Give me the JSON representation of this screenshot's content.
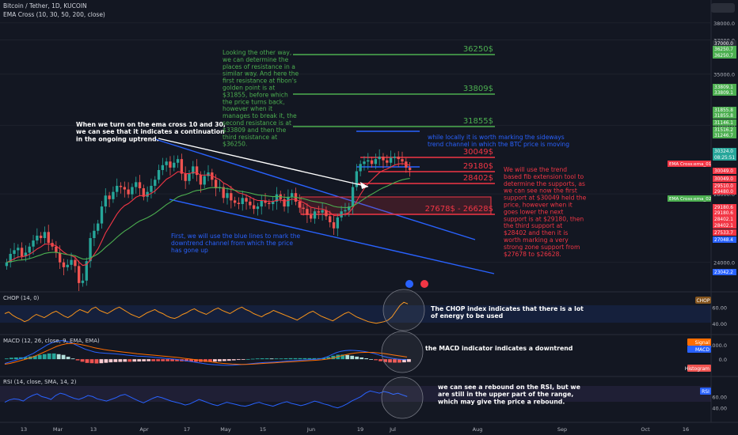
{
  "header": {
    "symbol_line": "Bitcoin / Tether, 1D, KUCOIN",
    "ema_line": "EMA Cross (10, 30, 50, 200, close)"
  },
  "colors": {
    "bg": "#131722",
    "up": "#26a69a",
    "down": "#ef5350",
    "blue_line": "#2962ff",
    "green_level": "#4caf50",
    "red_level": "#f23645",
    "ema_fast": "#f23645",
    "ema_slow": "#4caf50",
    "chop_line": "#f7931a",
    "macd_line": "#2962ff",
    "signal_line": "#ff6d00",
    "rsi_line": "#2962ff"
  },
  "chart_data": [
    {
      "type": "candlestick",
      "series_name": "BTC/USDT",
      "y_ticks": [
        24000,
        28000,
        32000,
        35000,
        37000,
        38000
      ],
      "ylim": [
        22500,
        38500
      ],
      "price_labels": [
        "37000.0",
        "36250.7",
        "36250.7",
        "33809.1",
        "33809.1",
        "31855.8",
        "31855.8",
        "31146.1",
        "31516.2",
        "31246.7",
        "30324.0",
        "08:25:51",
        "30049.0",
        "30049.0",
        "29510.0",
        "29480.0",
        "29180.6",
        "29180.6",
        "28402.1",
        "28402.1",
        "27533.7",
        "27048.4",
        "23042.2"
      ],
      "ema_tags": [
        "EMA Cross:ema_01",
        "EMA Cross:ema_02"
      ],
      "x_ticks": [
        "13",
        "Mar",
        "13",
        "Apr",
        "17",
        "May",
        "15",
        "Jun",
        "19",
        "Jul",
        "Aug",
        "Sep",
        "Oct",
        "16"
      ],
      "levels": [
        {
          "label": "36250$",
          "value": 36250,
          "color": "green"
        },
        {
          "label": "33809$",
          "value": 33809,
          "color": "green"
        },
        {
          "label": "31855$",
          "value": 31855,
          "color": "green"
        },
        {
          "label": "30049$",
          "value": 30049,
          "color": "red"
        },
        {
          "label": "29180$",
          "value": 29180,
          "color": "red"
        },
        {
          "label": "28402$",
          "value": 28402,
          "color": "red"
        },
        {
          "label": "27678$ - 26628$",
          "value": 27678,
          "color": "red"
        }
      ],
      "closes": [
        22100,
        22800,
        23100,
        23300,
        22600,
        22900,
        23400,
        23900,
        24300,
        24100,
        24600,
        23700,
        23400,
        22900,
        22100,
        21700,
        21900,
        22300,
        21800,
        20400,
        20600,
        22200,
        24100,
        24700,
        25300,
        26700,
        27600,
        27300,
        27900,
        28400,
        28300,
        28100,
        27700,
        28300,
        28700,
        28200,
        27500,
        27900,
        28400,
        28900,
        29700,
        30100,
        30400,
        29900,
        30300,
        30600,
        29400,
        28800,
        29400,
        30000,
        29300,
        28500,
        29200,
        29500,
        28900,
        28200,
        28300,
        27400,
        27800,
        27200,
        27000,
        26900,
        27400,
        27100,
        26800,
        26500,
        26700,
        27200,
        27000,
        26900,
        27100,
        27700,
        27300,
        26700,
        27500,
        27800,
        27100,
        26600,
        26500,
        26000,
        25700,
        26300,
        26200,
        26400,
        25900,
        25400,
        24900,
        25800,
        26300,
        26400,
        26700,
        28300,
        29600,
        30200,
        30400,
        30500,
        30200,
        30600,
        30800,
        30500,
        30300,
        30700,
        30800,
        30600,
        30400,
        29900,
        29700
      ]
    },
    {
      "type": "line",
      "series_name": "CHOP (14, 0)",
      "y_ticks": [
        40,
        60
      ],
      "badge": "CHOP",
      "values": [
        52,
        54,
        50,
        47,
        45,
        42,
        44,
        48,
        51,
        49,
        47,
        50,
        53,
        55,
        52,
        49,
        47,
        50,
        54,
        57,
        55,
        53,
        58,
        60,
        56,
        54,
        52,
        55,
        58,
        60,
        57,
        54,
        51,
        49,
        47,
        50,
        53,
        55,
        57,
        54,
        52,
        49,
        47,
        46,
        48,
        51,
        53,
        56,
        58,
        55,
        53,
        51,
        54,
        57,
        59,
        56,
        54,
        52,
        55,
        58,
        60,
        57,
        55,
        52,
        50,
        48,
        51,
        53,
        56,
        54,
        52,
        50,
        48,
        46,
        44,
        47,
        50,
        53,
        55,
        52,
        49,
        47,
        45,
        43,
        46,
        49,
        52,
        54,
        51,
        48,
        46,
        44,
        42,
        41,
        40,
        41,
        42,
        44,
        48,
        55,
        62,
        66,
        64
      ]
    },
    {
      "type": "histogram",
      "series_name": "MACD (12, 26, close, 9, EMA, EMA)",
      "y_ticks": [
        0,
        1000
      ],
      "ylim": [
        -600,
        1500
      ],
      "tags": [
        "Signal",
        "MACD",
        "Histogram"
      ],
      "macd": [
        -300,
        -200,
        -100,
        0,
        100,
        250,
        400,
        600,
        800,
        1000,
        1150,
        1250,
        1300,
        1250,
        1150,
        1000,
        850,
        700,
        600,
        500,
        450,
        420,
        400,
        380,
        350,
        320,
        280,
        250,
        220,
        200,
        180,
        150,
        120,
        90,
        60,
        30,
        0,
        -50,
        -100,
        -150,
        -200,
        -250,
        -300,
        -350,
        -380,
        -400,
        -420,
        -430,
        -420,
        -400,
        -380,
        -350,
        -320,
        -280,
        -250,
        -230,
        -220,
        -200,
        -180,
        -150,
        -120,
        -100,
        -80,
        -60,
        -40,
        -20,
        0,
        50,
        150,
        300,
        450,
        550,
        600,
        620,
        610,
        580,
        540,
        480,
        400,
        300,
        200,
        120,
        60,
        10,
        -20,
        -40
      ],
      "signal": [
        -350,
        -300,
        -220,
        -130,
        -40,
        60,
        170,
        300,
        450,
        600,
        750,
        900,
        1000,
        1080,
        1100,
        1080,
        1030,
        960,
        880,
        800,
        730,
        670,
        620,
        580,
        540,
        500,
        460,
        420,
        380,
        350,
        320,
        290,
        260,
        230,
        200,
        170,
        140,
        100,
        60,
        20,
        -20,
        -60,
        -110,
        -160,
        -210,
        -250,
        -290,
        -320,
        -340,
        -350,
        -360,
        -360,
        -350,
        -330,
        -310,
        -290,
        -270,
        -250,
        -230,
        -210,
        -190,
        -170,
        -150,
        -130,
        -110,
        -90,
        -70,
        -40,
        0,
        60,
        140,
        230,
        310,
        380,
        430,
        460,
        480,
        480,
        470,
        440,
        400,
        350,
        300,
        250,
        200,
        150
      ]
    },
    {
      "type": "line",
      "series_name": "RSI (14, close, SMA, 14, 2)",
      "y_ticks": [
        40,
        60
      ],
      "ylim": [
        20,
        90
      ],
      "badge": "RSI",
      "values": [
        50,
        54,
        56,
        55,
        52,
        58,
        62,
        65,
        60,
        58,
        55,
        62,
        66,
        64,
        60,
        57,
        55,
        58,
        62,
        60,
        56,
        54,
        52,
        55,
        58,
        62,
        64,
        60,
        56,
        52,
        49,
        53,
        57,
        60,
        58,
        55,
        52,
        50,
        48,
        45,
        47,
        51,
        55,
        52,
        49,
        46,
        44,
        47,
        50,
        48,
        46,
        44,
        43,
        45,
        48,
        50,
        47,
        45,
        43,
        46,
        49,
        51,
        48,
        46,
        44,
        46,
        49,
        52,
        50,
        47,
        45,
        42,
        40,
        43,
        47,
        52,
        56,
        60,
        66,
        70,
        68,
        66,
        69,
        67,
        64,
        66,
        63,
        60
      ]
    }
  ],
  "annotations": {
    "ema_cross": "When we turn on the ema cross 10 and 30,\nwe can see that it indicates a continuation\nin the ongoing uptrend.",
    "fib_resistance": "Looking the other way,\nwe can determine the\nplaces of resistance in a\nsimilar way. And here the\nfirst resistance at fibon's\ngolden point is at\n$31855, before which\nthe price turns back,\nhowever when it\nmanages to break it, the\nsecond resistance is at\n$33809 and then the\nthird resistance at\n$36250.",
    "sideways": "while locally it is worth marking the sideways\ntrend channel in which the BTC price is moving",
    "fib_support": "We will use the trend\nbased fib extension tool to\ndetermine the supports, as\nwe can see now the first\nsupport at $30049 held the\nprice, however when it\ngoes lower the next\nsupport is at $29180, then\nthe third support at\n$28402 and then it is\nworth marking a very\nstrong zone support from\n$27678 to $26628.",
    "blue_lines": "First, we will use the blue lines to mark the\ndowntrend channel from which the price\nhas gone up",
    "chop": "The CHOP index indicates that there is a lot\nof energy to be used",
    "macd": "the MACD indicator indicates a downtrend",
    "rsi": "we can see a rebound on the RSI, but we\nare still in the upper part of the range,\nwhich may give the price a rebound."
  }
}
